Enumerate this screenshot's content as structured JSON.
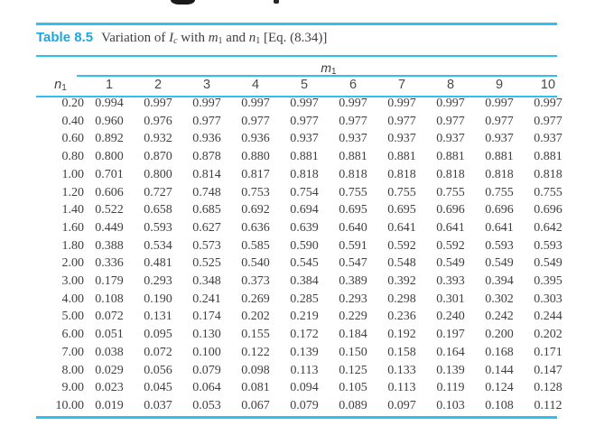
{
  "colors": {
    "rule_cyan": "#2fc0ee",
    "title_cyan": "#1ea7dc",
    "body_text": "#3f3f3f",
    "header_text": "#4a4a4a",
    "background": "#ffffff"
  },
  "table": {
    "label": "Table 8.5",
    "caption": {
      "prefix": "Variation of ",
      "var1": "I",
      "var1_sub": "c",
      "mid1": " with ",
      "var2": "m",
      "var2_sub": "1",
      "mid2": " and ",
      "var3": "n",
      "var3_sub": "1",
      "suffix": " [Eq. (8.34)]"
    },
    "span_header": {
      "var": "m",
      "sub": "1"
    },
    "row_header": {
      "var": "n",
      "sub": "1"
    },
    "col_headers": [
      "1",
      "2",
      "3",
      "4",
      "5",
      "6",
      "7",
      "8",
      "9",
      "10"
    ],
    "rows": [
      {
        "n": "0.20",
        "values": [
          "0.994",
          "0.997",
          "0.997",
          "0.997",
          "0.997",
          "0.997",
          "0.997",
          "0.997",
          "0.997",
          "0.997"
        ]
      },
      {
        "n": "0.40",
        "values": [
          "0.960",
          "0.976",
          "0.977",
          "0.977",
          "0.977",
          "0.977",
          "0.977",
          "0.977",
          "0.977",
          "0.977"
        ]
      },
      {
        "n": "0.60",
        "values": [
          "0.892",
          "0.932",
          "0.936",
          "0.936",
          "0.937",
          "0.937",
          "0.937",
          "0.937",
          "0.937",
          "0.937"
        ]
      },
      {
        "n": "0.80",
        "values": [
          "0.800",
          "0.870",
          "0.878",
          "0.880",
          "0.881",
          "0.881",
          "0.881",
          "0.881",
          "0.881",
          "0.881"
        ]
      },
      {
        "n": "1.00",
        "values": [
          "0.701",
          "0.800",
          "0.814",
          "0.817",
          "0.818",
          "0.818",
          "0.818",
          "0.818",
          "0.818",
          "0.818"
        ]
      },
      {
        "n": "1.20",
        "values": [
          "0.606",
          "0.727",
          "0.748",
          "0.753",
          "0.754",
          "0.755",
          "0.755",
          "0.755",
          "0.755",
          "0.755"
        ]
      },
      {
        "n": "1.40",
        "values": [
          "0.522",
          "0.658",
          "0.685",
          "0.692",
          "0.694",
          "0.695",
          "0.695",
          "0.696",
          "0.696",
          "0.696"
        ]
      },
      {
        "n": "1.60",
        "values": [
          "0.449",
          "0.593",
          "0.627",
          "0.636",
          "0.639",
          "0.640",
          "0.641",
          "0.641",
          "0.641",
          "0.642"
        ]
      },
      {
        "n": "1.80",
        "values": [
          "0.388",
          "0.534",
          "0.573",
          "0.585",
          "0.590",
          "0.591",
          "0.592",
          "0.592",
          "0.593",
          "0.593"
        ]
      },
      {
        "n": "2.00",
        "values": [
          "0.336",
          "0.481",
          "0.525",
          "0.540",
          "0.545",
          "0.547",
          "0.548",
          "0.549",
          "0.549",
          "0.549"
        ]
      },
      {
        "n": "3.00",
        "values": [
          "0.179",
          "0.293",
          "0.348",
          "0.373",
          "0.384",
          "0.389",
          "0.392",
          "0.393",
          "0.394",
          "0.395"
        ]
      },
      {
        "n": "4.00",
        "values": [
          "0.108",
          "0.190",
          "0.241",
          "0.269",
          "0.285",
          "0.293",
          "0.298",
          "0.301",
          "0.302",
          "0.303"
        ]
      },
      {
        "n": "5.00",
        "values": [
          "0.072",
          "0.131",
          "0.174",
          "0.202",
          "0.219",
          "0.229",
          "0.236",
          "0.240",
          "0.242",
          "0.244"
        ]
      },
      {
        "n": "6.00",
        "values": [
          "0.051",
          "0.095",
          "0.130",
          "0.155",
          "0.172",
          "0.184",
          "0.192",
          "0.197",
          "0.200",
          "0.202"
        ]
      },
      {
        "n": "7.00",
        "values": [
          "0.038",
          "0.072",
          "0.100",
          "0.122",
          "0.139",
          "0.150",
          "0.158",
          "0.164",
          "0.168",
          "0.171"
        ]
      },
      {
        "n": "8.00",
        "values": [
          "0.029",
          "0.056",
          "0.079",
          "0.098",
          "0.113",
          "0.125",
          "0.133",
          "0.139",
          "0.144",
          "0.147"
        ]
      },
      {
        "n": "9.00",
        "values": [
          "0.023",
          "0.045",
          "0.064",
          "0.081",
          "0.094",
          "0.105",
          "0.113",
          "0.119",
          "0.124",
          "0.128"
        ]
      },
      {
        "n": "10.00",
        "values": [
          "0.019",
          "0.037",
          "0.053",
          "0.067",
          "0.079",
          "0.089",
          "0.097",
          "0.103",
          "0.108",
          "0.112"
        ]
      }
    ]
  }
}
